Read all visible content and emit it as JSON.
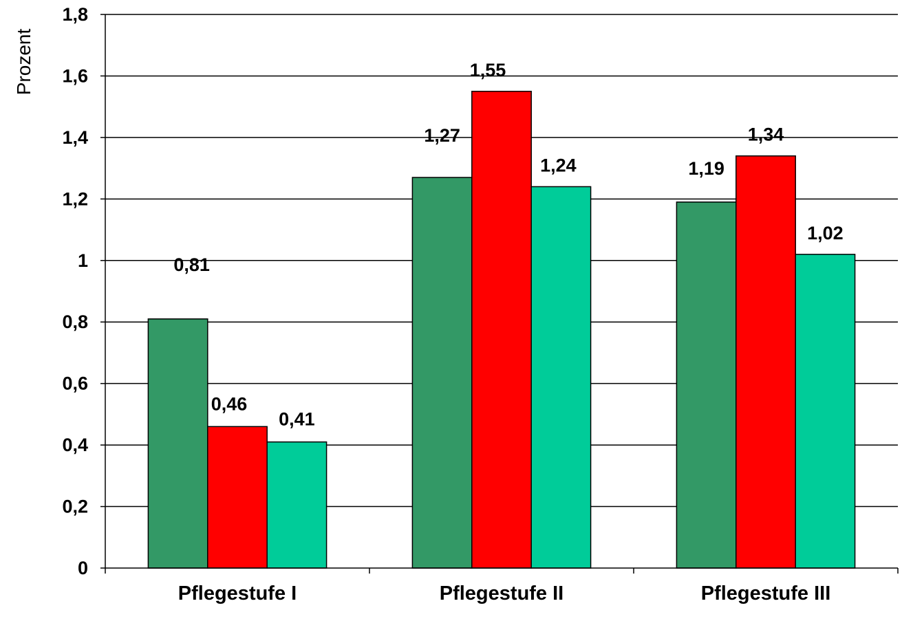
{
  "chart_data": {
    "type": "bar",
    "ylabel": "Prozent",
    "categories": [
      "Pflegestufe I",
      "Pflegestufe II",
      "Pflegestufe III"
    ],
    "series": [
      {
        "values": [
          0.81,
          1.27,
          1.19
        ],
        "labels": [
          "0,81",
          "1,27",
          "1,19"
        ],
        "color": "#339966"
      },
      {
        "values": [
          0.46,
          1.55,
          1.34
        ],
        "labels": [
          "0,46",
          "1,55",
          "1,34"
        ],
        "color": "#ff0000"
      },
      {
        "values": [
          0.41,
          1.24,
          1.02
        ],
        "labels": [
          "0,41",
          "1,24",
          "1,02"
        ],
        "color": "#00cc99"
      }
    ],
    "ylim": [
      0,
      1.8
    ],
    "yticks": [
      0,
      0.2,
      0.4,
      0.6,
      0.8,
      1,
      1.2,
      1.4,
      1.6,
      1.8
    ],
    "ytick_labels": [
      "0",
      "0,2",
      "0,4",
      "0,6",
      "0,8",
      "1",
      "1,2",
      "1,4",
      "1,6",
      "1,8"
    ],
    "grid": true,
    "legend": false
  }
}
